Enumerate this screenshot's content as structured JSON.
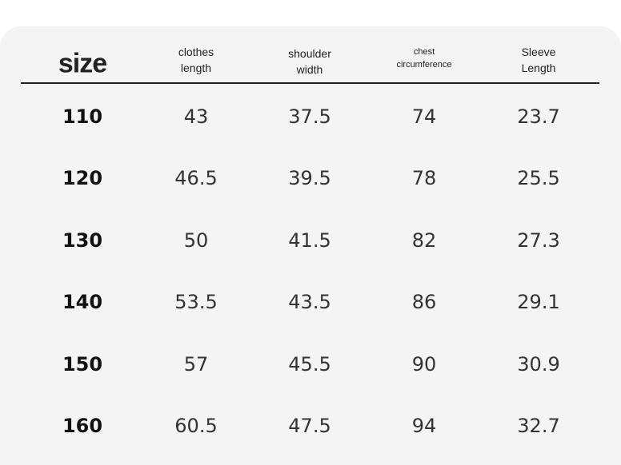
{
  "table": {
    "header": [
      [
        "size"
      ],
      [
        "clothes",
        "length"
      ],
      [
        "shoulder",
        "width"
      ],
      [
        "chest",
        "circumference"
      ],
      [
        "Sleeve",
        "Length"
      ]
    ],
    "rows": [
      [
        110,
        43,
        37.5,
        74,
        23.7
      ],
      [
        120,
        46.5,
        39.5,
        78,
        25.5
      ],
      [
        130,
        50,
        41.5,
        82,
        27.3
      ],
      [
        140,
        53.5,
        43.5,
        86,
        29.1
      ],
      [
        150,
        57,
        45.5,
        90,
        30.9
      ],
      [
        160,
        60.5,
        47.5,
        94,
        32.7
      ]
    ]
  }
}
